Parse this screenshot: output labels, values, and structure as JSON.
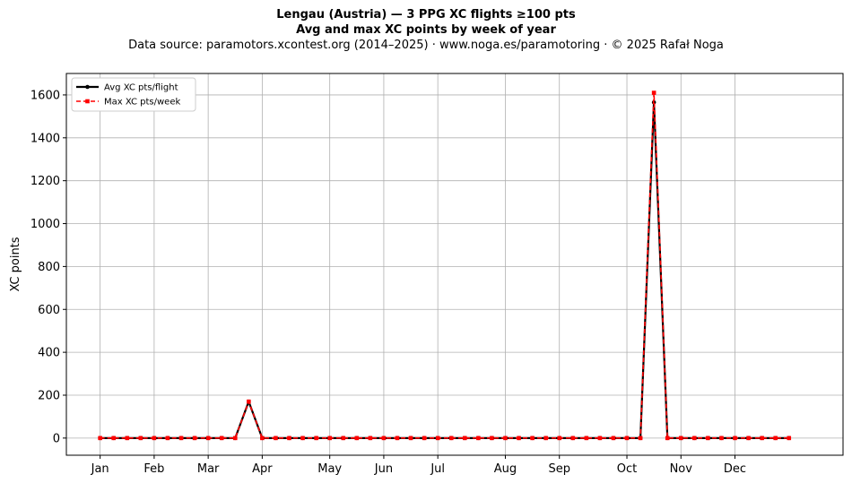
{
  "chart_data": {
    "type": "line",
    "title": "Lengau (Austria)  —  3 PPG XC flights ≥100 pts",
    "subtitle": "Avg and max XC points by week of year",
    "source_line": "Data source: paramotors.xcontest.org (2014–2025)  ·  www.noga.es/paramotoring  ·  © 2025 Rafał Noga",
    "xlabel": "",
    "ylabel": "XC points",
    "xlim": [
      -2.5,
      55
    ],
    "ylim": [
      -80,
      1700
    ],
    "grid": true,
    "legend_position": "top-left",
    "x_ticks": [
      {
        "label": "Jan",
        "week": 0
      },
      {
        "label": "Feb",
        "week": 4
      },
      {
        "label": "Mar",
        "week": 8
      },
      {
        "label": "Apr",
        "week": 12
      },
      {
        "label": "May",
        "week": 17
      },
      {
        "label": "Jun",
        "week": 21
      },
      {
        "label": "Jul",
        "week": 25
      },
      {
        "label": "Aug",
        "week": 30
      },
      {
        "label": "Sep",
        "week": 34
      },
      {
        "label": "Oct",
        "week": 39
      },
      {
        "label": "Nov",
        "week": 43
      },
      {
        "label": "Dec",
        "week": 47
      }
    ],
    "y_ticks": [
      0,
      200,
      400,
      600,
      800,
      1000,
      1200,
      1400,
      1600
    ],
    "x": [
      0,
      1,
      2,
      3,
      4,
      5,
      6,
      7,
      8,
      9,
      10,
      11,
      12,
      13,
      14,
      15,
      16,
      17,
      18,
      19,
      20,
      21,
      22,
      23,
      24,
      25,
      26,
      27,
      28,
      29,
      30,
      31,
      32,
      33,
      34,
      35,
      36,
      37,
      38,
      39,
      40,
      41,
      42,
      43,
      44,
      45,
      46,
      47,
      48,
      49,
      50,
      51
    ],
    "series": [
      {
        "name": "Avg XC pts/flight",
        "color": "#000000",
        "style": "solid",
        "marker": "circle",
        "values": [
          0,
          0,
          0,
          0,
          0,
          0,
          0,
          0,
          0,
          0,
          0,
          170,
          0,
          0,
          0,
          0,
          0,
          0,
          0,
          0,
          0,
          0,
          0,
          0,
          0,
          0,
          0,
          0,
          0,
          0,
          0,
          0,
          0,
          0,
          0,
          0,
          0,
          0,
          0,
          0,
          0,
          1565,
          0,
          0,
          0,
          0,
          0,
          0,
          0,
          0,
          0,
          0
        ]
      },
      {
        "name": "Max XC pts/week",
        "color": "#ff0000",
        "style": "dashed",
        "marker": "square",
        "values": [
          0,
          0,
          0,
          0,
          0,
          0,
          0,
          0,
          0,
          0,
          0,
          170,
          0,
          0,
          0,
          0,
          0,
          0,
          0,
          0,
          0,
          0,
          0,
          0,
          0,
          0,
          0,
          0,
          0,
          0,
          0,
          0,
          0,
          0,
          0,
          0,
          0,
          0,
          0,
          0,
          0,
          1610,
          0,
          0,
          0,
          0,
          0,
          0,
          0,
          0,
          0,
          0
        ]
      }
    ]
  }
}
